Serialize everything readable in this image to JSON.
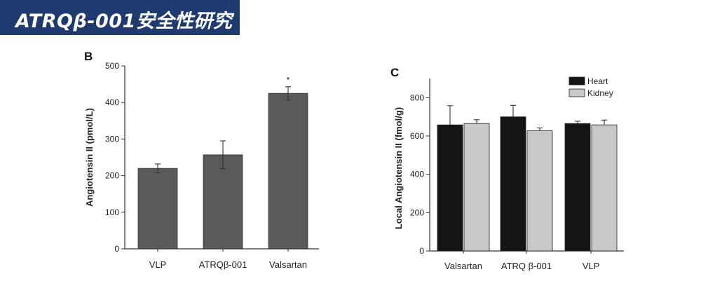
{
  "header": {
    "title": "ATRQβ-001安全性研究"
  },
  "colors": {
    "banner": "#1f3a6e",
    "bar_b": "#5a5a5a",
    "heart": "#141414",
    "kidney": "#c8c8c8"
  },
  "chart_data": [
    {
      "panel": "B",
      "type": "bar",
      "ylabel": "Angiotensin II (pmol/L)",
      "ylim": [
        0,
        500
      ],
      "yticks": [
        0,
        100,
        200,
        300,
        400,
        500
      ],
      "categories": [
        "VLP",
        "ATRQβ-001",
        "Valsartan"
      ],
      "values": [
        220,
        257,
        425
      ],
      "errors": [
        12,
        38,
        18
      ],
      "annotations": [
        "",
        "",
        "*"
      ]
    },
    {
      "panel": "C",
      "type": "bar",
      "ylabel": "Local Angiotensin II (fmol/g)",
      "ylim": [
        0,
        900
      ],
      "yticks": [
        0,
        200,
        400,
        600,
        800
      ],
      "categories": [
        "Valsartan",
        "ATRQ β-001",
        "VLP"
      ],
      "legend_position": "top-right",
      "series": [
        {
          "name": "Heart",
          "values": [
            658,
            700,
            665
          ],
          "errors": [
            100,
            60,
            12
          ]
        },
        {
          "name": "Kidney",
          "values": [
            665,
            627,
            658
          ],
          "errors": [
            20,
            15,
            25
          ]
        }
      ]
    }
  ]
}
